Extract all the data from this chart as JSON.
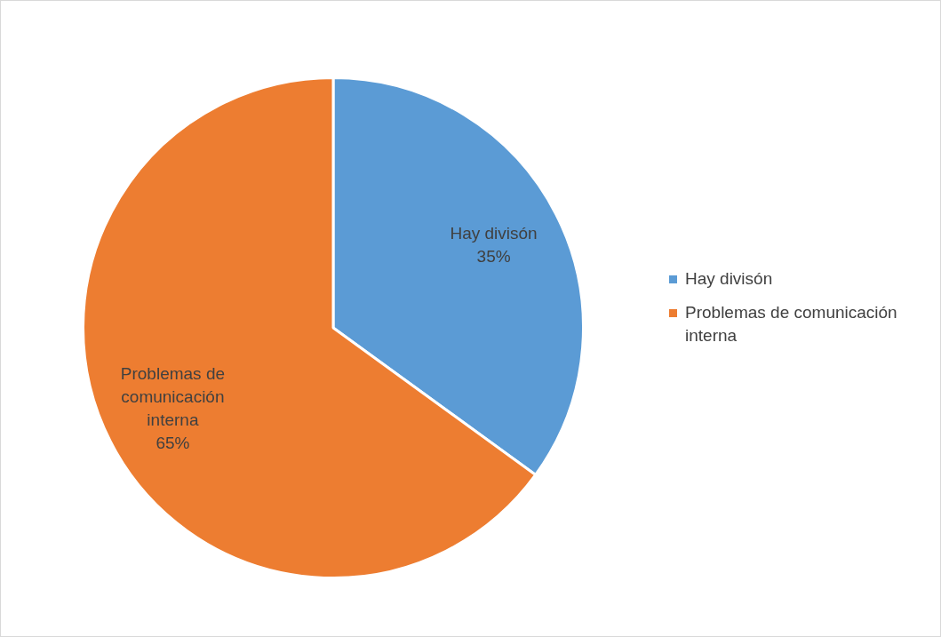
{
  "chart_data": {
    "type": "pie",
    "categories": [
      "Hay divisón",
      "Problemas de comunicación interna"
    ],
    "values": [
      35,
      65
    ],
    "colors": [
      "#5b9bd5",
      "#ed7d31"
    ],
    "value_labels": [
      "35%",
      "65%"
    ],
    "legend": "right"
  }
}
